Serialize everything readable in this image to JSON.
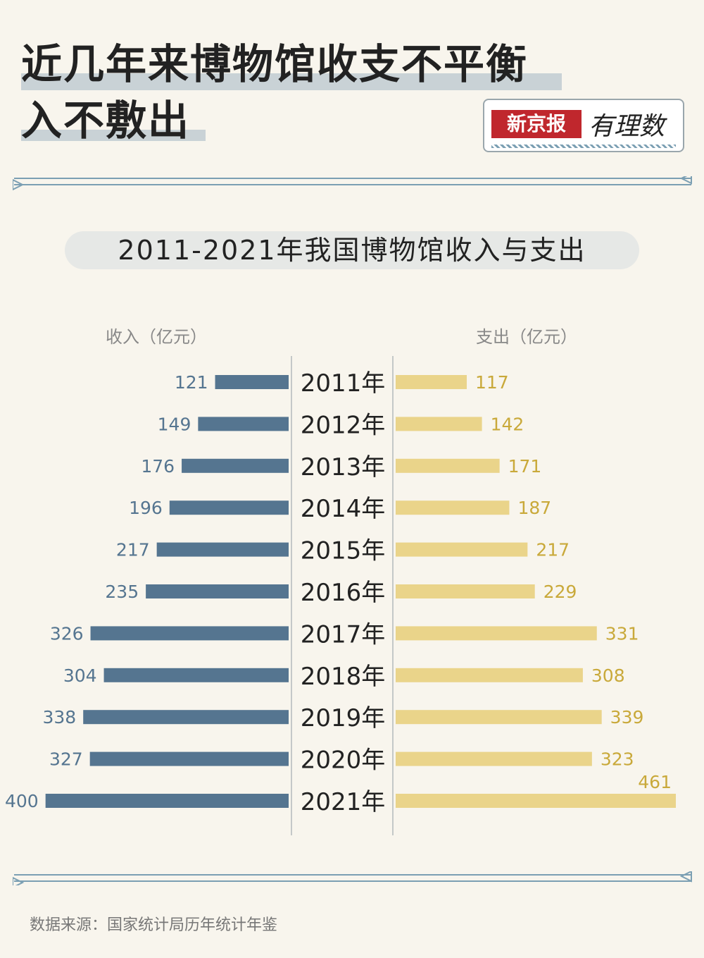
{
  "header": {
    "title_line1": "近几年来博物馆收支不平衡",
    "title_line2": "入不敷出"
  },
  "logo": {
    "brand": "新京报",
    "tagline": "有理数"
  },
  "colors": {
    "background": "#f8f5ed",
    "income": "#557590",
    "expense": "#ead48a",
    "income_label": "#557590",
    "expense_label": "#c9a93a",
    "divider": "#7b9fb3"
  },
  "chart_data": {
    "type": "bar",
    "title": "2011-2021年我国博物馆收入与支出",
    "left_label": "收入（亿元）",
    "right_label": "支出（亿元）",
    "categories": [
      "2011年",
      "2012年",
      "2013年",
      "2014年",
      "2015年",
      "2016年",
      "2017年",
      "2018年",
      "2019年",
      "2020年",
      "2021年"
    ],
    "series": [
      {
        "name": "收入（亿元）",
        "values": [
          121,
          149,
          176,
          196,
          217,
          235,
          326,
          304,
          338,
          327,
          400
        ]
      },
      {
        "name": "支出（亿元）",
        "values": [
          117,
          142,
          171,
          187,
          217,
          229,
          331,
          308,
          339,
          323,
          461
        ]
      }
    ],
    "xlim": [
      0,
      461
    ]
  },
  "footer": {
    "source": "数据来源：国家统计局历年统计年鉴"
  }
}
